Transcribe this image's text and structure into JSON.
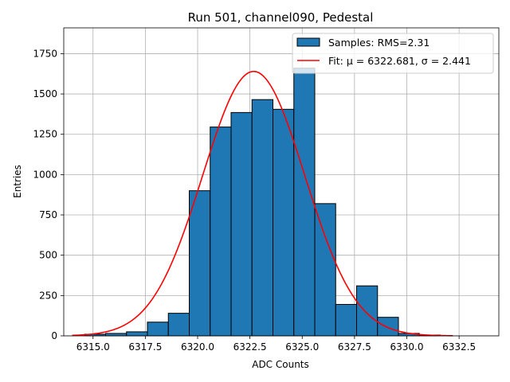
{
  "chart_data": {
    "type": "bar",
    "title": "Run 501, channel090, Pedestal",
    "xlabel": "ADC Counts",
    "ylabel": "Entries",
    "xlim": [
      6313.6,
      6334.4
    ],
    "ylim": [
      0,
      1910
    ],
    "xticks": [
      6315.0,
      6317.5,
      6320.0,
      6322.5,
      6325.0,
      6327.5,
      6330.0,
      6332.5
    ],
    "xtick_labels": [
      "6315.0",
      "6317.5",
      "6320.0",
      "6322.5",
      "6325.0",
      "6327.5",
      "6330.0",
      "6332.5"
    ],
    "yticks": [
      0,
      250,
      500,
      750,
      1000,
      1250,
      1500,
      1750
    ],
    "ytick_labels": [
      "0",
      "250",
      "500",
      "750",
      "1000",
      "1250",
      "1500",
      "1750"
    ],
    "grid": true,
    "legend_position": "top-right",
    "histogram": {
      "name": "Samples: RMS=2.31",
      "color": "#1f77b4",
      "bins": [
        {
          "x0": 6314.6,
          "x1": 6315.6,
          "count": 10
        },
        {
          "x0": 6315.6,
          "x1": 6316.6,
          "count": 15
        },
        {
          "x0": 6316.6,
          "x1": 6317.6,
          "count": 25
        },
        {
          "x0": 6317.6,
          "x1": 6318.6,
          "count": 85
        },
        {
          "x0": 6318.6,
          "x1": 6319.6,
          "count": 140
        },
        {
          "x0": 6319.6,
          "x1": 6320.6,
          "count": 900
        },
        {
          "x0": 6320.6,
          "x1": 6321.6,
          "count": 1295
        },
        {
          "x0": 6321.6,
          "x1": 6322.6,
          "count": 1385
        },
        {
          "x0": 6322.6,
          "x1": 6323.6,
          "count": 1465
        },
        {
          "x0": 6323.6,
          "x1": 6324.6,
          "count": 1405
        },
        {
          "x0": 6324.6,
          "x1": 6325.6,
          "count": 1660
        },
        {
          "x0": 6325.6,
          "x1": 6326.6,
          "count": 820
        },
        {
          "x0": 6326.6,
          "x1": 6327.6,
          "count": 195
        },
        {
          "x0": 6327.6,
          "x1": 6328.6,
          "count": 310
        },
        {
          "x0": 6328.6,
          "x1": 6329.6,
          "count": 115
        },
        {
          "x0": 6329.6,
          "x1": 6330.6,
          "count": 15
        },
        {
          "x0": 6330.6,
          "x1": 6331.6,
          "count": 5
        }
      ]
    },
    "fit": {
      "name": "Fit: μ = 6322.681, σ = 2.441",
      "color": "#ff0000",
      "mu": 6322.681,
      "sigma": 2.441,
      "amplitude": 1640,
      "x_range": [
        6314.0,
        6332.2
      ]
    },
    "legend": {
      "hist_label": "Samples: RMS=2.31",
      "fit_label": "Fit: μ = 6322.681, σ = 2.441"
    }
  }
}
